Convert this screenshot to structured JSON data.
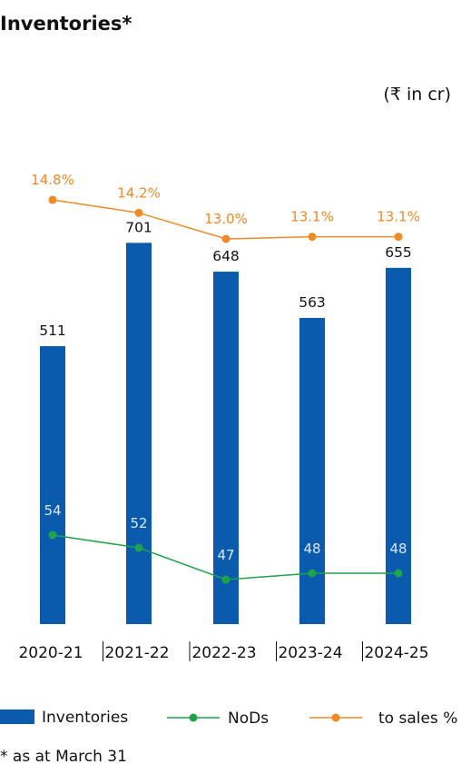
{
  "chart_data": {
    "type": "bar",
    "title": "Inventories*",
    "unit_note": "(₹ in cr)",
    "categories": [
      "2020-21",
      "2021-22",
      "2022-23",
      "2023-24",
      "2024-25"
    ],
    "series": [
      {
        "name": "Inventories",
        "type": "bar",
        "values": [
          511,
          701,
          648,
          563,
          655
        ],
        "color": "#0a5aad"
      },
      {
        "name": "NoDs",
        "type": "line",
        "values": [
          54,
          52,
          47,
          48,
          48
        ],
        "color": "#1fa34a"
      },
      {
        "name": "to sales %",
        "type": "line",
        "values": [
          14.8,
          14.2,
          13.0,
          13.1,
          13.1
        ],
        "labels": [
          "14.8%",
          "14.2%",
          "13.0%",
          "13.1%",
          "13.1%"
        ],
        "color": "#f08a24"
      }
    ],
    "ylim": [
      0,
      800
    ],
    "grid": false,
    "legend_position": "bottom",
    "footnote": "* as at March 31"
  }
}
